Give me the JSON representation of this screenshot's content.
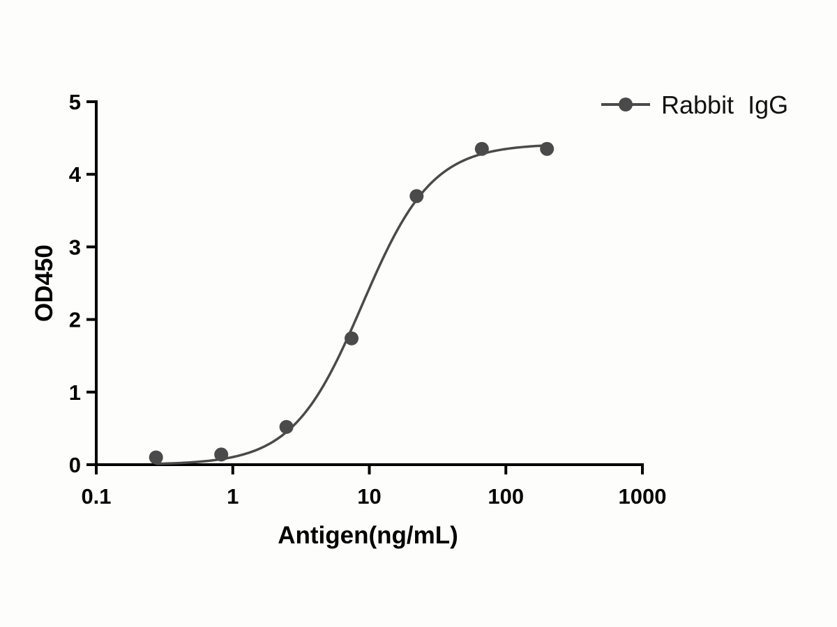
{
  "chart_data": {
    "type": "scatter",
    "title": "",
    "xlabel": "Antigen(ng/mL)",
    "ylabel": "OD450",
    "xscale": "log",
    "xlim": [
      0.1,
      1000
    ],
    "ylim": [
      0,
      5
    ],
    "x_ticks": [
      "0.1",
      "1",
      "10",
      "100",
      "1000"
    ],
    "y_ticks": [
      "0",
      "1",
      "2",
      "3",
      "4",
      "5"
    ],
    "grid": false,
    "legend_position": "top-right",
    "colors": {
      "series": "#4a4a4a",
      "axis": "#000000"
    },
    "series": [
      {
        "name": "Rabbit  IgG",
        "marker": "circle",
        "x": [
          0.274,
          0.823,
          2.47,
          7.41,
          22.2,
          66.7,
          200
        ],
        "y": [
          0.1,
          0.14,
          0.52,
          1.74,
          3.7,
          4.35,
          4.35
        ],
        "fit": {
          "model": "4PL",
          "bottom": 0.0,
          "top": 4.42,
          "ec50": 8.9,
          "hill": 1.7
        }
      }
    ]
  }
}
